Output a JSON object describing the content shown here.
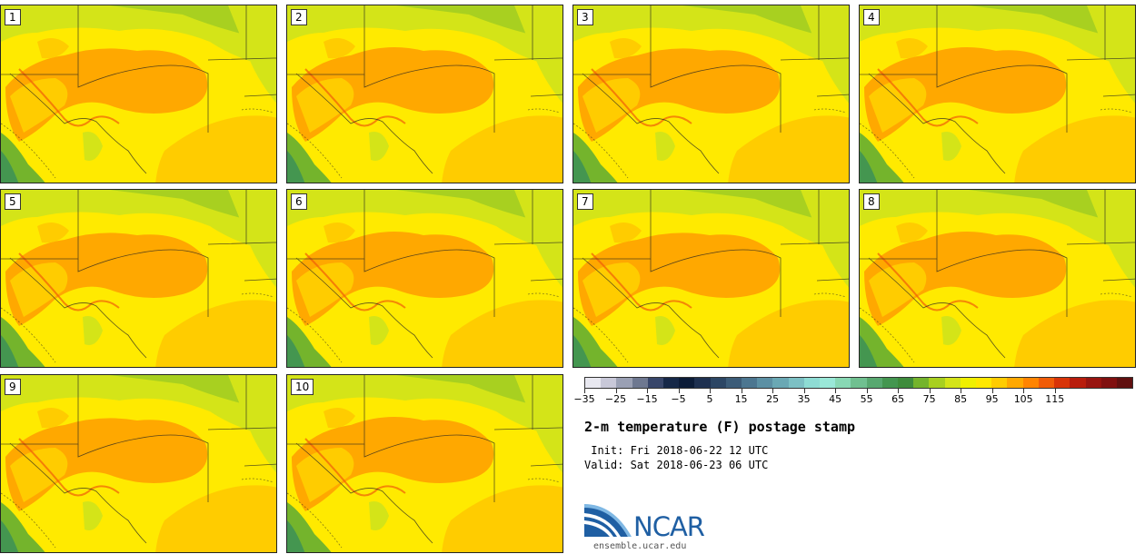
{
  "panels": [
    {
      "label": "1"
    },
    {
      "label": "2"
    },
    {
      "label": "3"
    },
    {
      "label": "4"
    },
    {
      "label": "5"
    },
    {
      "label": "6"
    },
    {
      "label": "7"
    },
    {
      "label": "8"
    },
    {
      "label": "9"
    },
    {
      "label": "10"
    }
  ],
  "colorbar": {
    "colors": [
      "#e8e8f0",
      "#c8c8d8",
      "#9aa0b4",
      "#6e7890",
      "#38466a",
      "#162848",
      "#0c1c38",
      "#1e3050",
      "#2c4664",
      "#3c5c78",
      "#4c7690",
      "#5c90a4",
      "#6aa8b4",
      "#7cc0c4",
      "#8edcd4",
      "#9ae8d8",
      "#88d8b4",
      "#70c090",
      "#58a870",
      "#449650",
      "#3e8c3c",
      "#74b42c",
      "#a8d020",
      "#d4e418",
      "#f0f000",
      "#ffe800",
      "#ffcc00",
      "#ffa800",
      "#ff8400",
      "#f05c08",
      "#d83408",
      "#b81c0c",
      "#981410",
      "#801010",
      "#601010"
    ],
    "tick_labels": [
      "−35",
      "−25",
      "−15",
      "−5",
      "5",
      "15",
      "25",
      "35",
      "45",
      "55",
      "65",
      "75",
      "85",
      "95",
      "105",
      "115"
    ]
  },
  "title": "2-m temperature (F) postage stamp",
  "init_text": " Init: Fri 2018-06-22 12 UTC",
  "valid_text": "Valid: Sat 2018-06-23 06 UTC",
  "logo": {
    "name": "NCAR",
    "url": "ensemble.ucar.edu",
    "blue": "#1f5fa3",
    "light_blue": "#3a8ed0"
  },
  "map_colors": {
    "gulf": "#ffcc00",
    "land_hot": "#ffa800",
    "land_warm": "#ffcc00",
    "land_mild": "#ffea00",
    "land_cool": "#d4e418",
    "land_cooler": "#a8d020",
    "green": "#74b42c",
    "dark_green": "#449650",
    "ridge": "#f05c08"
  }
}
